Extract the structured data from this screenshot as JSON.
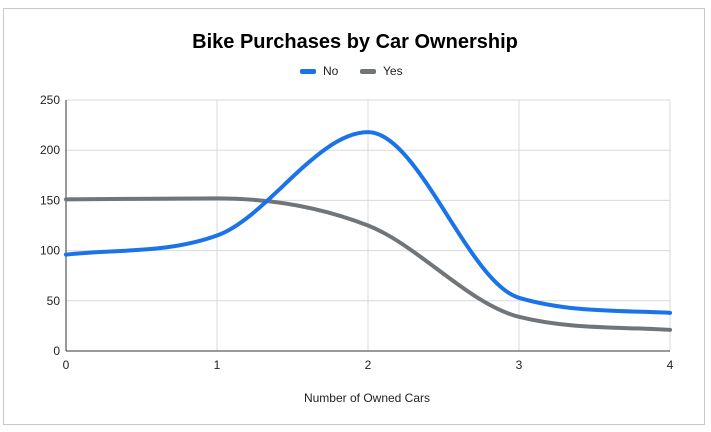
{
  "chart_data": {
    "type": "line",
    "title": "Bike Purchases by Car Ownership",
    "xlabel": "Number of Owned Cars",
    "ylabel": "",
    "x": [
      0,
      1,
      2,
      3,
      4
    ],
    "xlim": [
      0,
      4
    ],
    "ylim": [
      0,
      250
    ],
    "x_ticks": [
      "0",
      "1",
      "2",
      "3",
      "4"
    ],
    "y_ticks": [
      "0",
      "50",
      "100",
      "150",
      "200",
      "250"
    ],
    "grid": true,
    "legend_position": "top-center",
    "smooth": true,
    "series": [
      {
        "name": "No",
        "color": "#1a73e8",
        "values": [
          96,
          115,
          218,
          53,
          38
        ]
      },
      {
        "name": "Yes",
        "color": "#70757a",
        "values": [
          151,
          152,
          125,
          34,
          21
        ]
      }
    ]
  }
}
